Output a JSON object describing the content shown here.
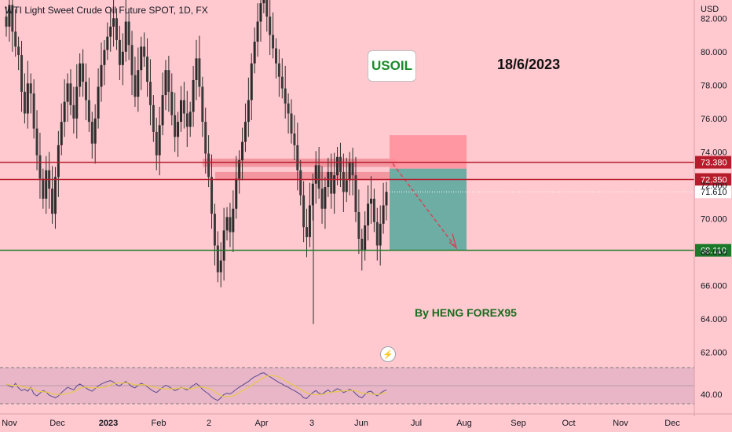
{
  "title": "WTI Light Sweet Crude Oil Future SPOT, 1D, FX",
  "badge": "USOIL",
  "date_note": "18/6/2023",
  "author_note": "By HENG FOREX95",
  "axis_unit": "USD",
  "icons": {
    "alert": "lightning-bolt-icon"
  },
  "colors": {
    "background": "#ffc9cf",
    "resistance": "#b71c2c",
    "support": "#1b7a2a",
    "stop_zone": "#ff8e9a",
    "target_zone": "#66aca0",
    "candle_up": "#2e2e2e",
    "candle_down": "#2e2e2e",
    "rsi_line": "#5b4a8f",
    "rsi_ma": "#e8c84a"
  },
  "chart_data": {
    "type": "candlestick",
    "y_range": [
      62.5,
      83.0
    ],
    "y_ticks": [
      "82.000",
      "80.000",
      "78.000",
      "76.000",
      "74.000",
      "72.000",
      "70.000",
      "68.000",
      "66.000",
      "64.000",
      "62.000"
    ],
    "x_ticks": [
      "Nov",
      "Dec",
      "2023",
      "Feb",
      "2",
      "Apr",
      "3",
      "Jun",
      "Jul",
      "Aug",
      "Sep",
      "Oct",
      "Nov",
      "Dec"
    ],
    "levels": [
      {
        "label": "73.380",
        "value": 73.38,
        "kind": "resistance"
      },
      {
        "label": "72.350",
        "value": 72.35,
        "kind": "resistance"
      },
      {
        "label": "71.610",
        "value": 71.61,
        "kind": "current"
      },
      {
        "label": "68.110",
        "value": 68.11,
        "kind": "support"
      }
    ],
    "trade": {
      "entry": 73.0,
      "stop": 75.0,
      "target": 68.11,
      "direction": "short"
    },
    "zones": [
      {
        "from": 73.1,
        "to": 73.6
      },
      {
        "from": 72.3,
        "to": 72.8
      }
    ],
    "closes": [
      81.5,
      82.8,
      81.2,
      80.3,
      79.8,
      77.6,
      76.3,
      78.1,
      77.5,
      75.4,
      73.8,
      72.4,
      71.2,
      72.9,
      71.8,
      70.3,
      72.5,
      74.4,
      75.8,
      77.0,
      78.1,
      76.8,
      76.0,
      77.9,
      79.3,
      78.2,
      77.1,
      75.8,
      74.5,
      76.0,
      77.9,
      79.2,
      80.1,
      80.9,
      81.5,
      82.0,
      80.7,
      79.2,
      80.0,
      81.8,
      80.4,
      78.6,
      77.3,
      78.9,
      80.3,
      79.7,
      78.2,
      76.8,
      75.2,
      73.8,
      75.6,
      77.4,
      78.9,
      77.6,
      76.2,
      74.9,
      75.8,
      77.1,
      76.3,
      75.5,
      76.4,
      78.3,
      79.6,
      77.9,
      75.8,
      73.9,
      72.5,
      70.3,
      68.4,
      66.8,
      67.5,
      69.3,
      70.1,
      69.2,
      70.6,
      72.4,
      73.5,
      74.6,
      75.8,
      77.1,
      79.3,
      80.6,
      81.8,
      82.9,
      83.4,
      82.1,
      81.0,
      80.2,
      79.3,
      78.5,
      77.8,
      76.9,
      76.3,
      75.1,
      74.4,
      72.9,
      71.4,
      69.5,
      68.9,
      70.8,
      72.1,
      73.2,
      71.8,
      70.6,
      71.9,
      72.8,
      71.5,
      72.6,
      73.7,
      72.8,
      71.6,
      72.3,
      73.4,
      72.6,
      70.4,
      68.8,
      68.1,
      69.6,
      70.9,
      71.2,
      69.8,
      68.4,
      69.7,
      70.8,
      71.61
    ],
    "rsi": {
      "overbought": 70,
      "oversold": 30,
      "tick": "40.00",
      "values": [
        55,
        52,
        50,
        56,
        49,
        45,
        47,
        44,
        50,
        40,
        37,
        41,
        45,
        43,
        38,
        36,
        34,
        37,
        42,
        46,
        50,
        48,
        46,
        52,
        55,
        52,
        49,
        46,
        44,
        48,
        52,
        55,
        57,
        59,
        60,
        58,
        54,
        52,
        56,
        59,
        55,
        51,
        49,
        53,
        56,
        54,
        51,
        47,
        44,
        42,
        46,
        50,
        53,
        51,
        48,
        45,
        47,
        50,
        48,
        46,
        49,
        53,
        56,
        52,
        47,
        43,
        40,
        35,
        32,
        30,
        34,
        39,
        41,
        40,
        43,
        47,
        50,
        53,
        56,
        59,
        63,
        66,
        68,
        71,
        72,
        69,
        66,
        63,
        60,
        57,
        55,
        52,
        50,
        47,
        45,
        42,
        39,
        34,
        33,
        38,
        42,
        45,
        41,
        39,
        43,
        46,
        42,
        45,
        48,
        46,
        42,
        44,
        47,
        45,
        40,
        36,
        34,
        39,
        43,
        44,
        40,
        37,
        41,
        44,
        46
      ]
    }
  }
}
